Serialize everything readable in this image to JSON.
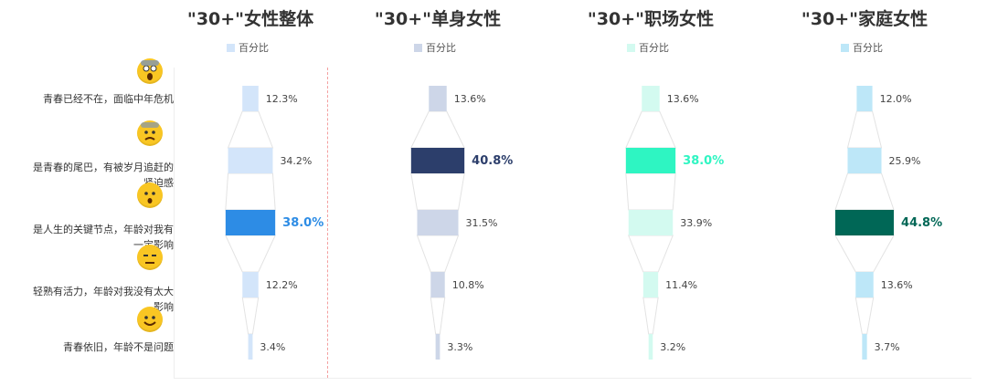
{
  "legend_label": "百分比",
  "categories": [
    {
      "label": "青春已经不在，面临中年危机",
      "icon": "screaming-face-icon"
    },
    {
      "label": "是青春的尾巴，有被岁月追赶的紧迫感",
      "icon": "anxious-face-icon"
    },
    {
      "label": "是人生的关键节点，年龄对我有一定影响",
      "icon": "surprised-face-icon"
    },
    {
      "label": "轻熟有活力，年龄对我没有太大影响",
      "icon": "expressionless-face-icon"
    },
    {
      "label": "青春依旧，年龄不是问题",
      "icon": "smiling-face-icon"
    }
  ],
  "chart_data": [
    {
      "type": "bar",
      "subtype": "funnel",
      "title": "\"30+\"女性整体",
      "series_label": "百分比",
      "categories": [
        "青春已经不在，面临中年危机",
        "是青春的尾巴，有被岁月追赶的紧迫感",
        "是人生的关键节点，年龄对我有一定影响",
        "轻熟有活力，年龄对我没有太大影响",
        "青春依旧，年龄不是问题"
      ],
      "values": [
        12.3,
        34.2,
        38.0,
        12.2,
        3.4
      ],
      "value_labels": [
        "12.3%",
        "34.2%",
        "38.0%",
        "12.2%",
        "3.4%"
      ],
      "highlight_index": 2,
      "color": "#d3e5fa",
      "highlight_color": "#2d8ce5"
    },
    {
      "type": "bar",
      "subtype": "funnel",
      "title": "\"30+\"单身女性",
      "series_label": "百分比",
      "categories": [
        "青春已经不在，面临中年危机",
        "是青春的尾巴，有被岁月追赶的紧迫感",
        "是人生的关键节点，年龄对我有一定影响",
        "轻熟有活力，年龄对我没有太大影响",
        "青春依旧，年龄不是问题"
      ],
      "values": [
        13.6,
        40.8,
        31.5,
        10.8,
        3.3
      ],
      "value_labels": [
        "13.6%",
        "40.8%",
        "31.5%",
        "10.8%",
        "3.3%"
      ],
      "highlight_index": 1,
      "color": "#cdd6e8",
      "highlight_color": "#2c3e6b"
    },
    {
      "type": "bar",
      "subtype": "funnel",
      "title": "\"30+\"职场女性",
      "series_label": "百分比",
      "categories": [
        "青春已经不在，面临中年危机",
        "是青春的尾巴，有被岁月追赶的紧迫感",
        "是人生的关键节点，年龄对我有一定影响",
        "轻熟有活力，年龄对我没有太大影响",
        "青春依旧，年龄不是问题"
      ],
      "values": [
        13.6,
        38.0,
        33.9,
        11.4,
        3.2
      ],
      "value_labels": [
        "13.6%",
        "38.0%",
        "33.9%",
        "11.4%",
        "3.2%"
      ],
      "highlight_index": 1,
      "color": "#d3faf0",
      "highlight_color": "#2ef5c2"
    },
    {
      "type": "bar",
      "subtype": "funnel",
      "title": "\"30+\"家庭女性",
      "series_label": "百分比",
      "categories": [
        "青春已经不在，面临中年危机",
        "是青春的尾巴，有被岁月追赶的紧迫感",
        "是人生的关键节点，年龄对我有一定影响",
        "轻熟有活力，年龄对我没有太大影响",
        "青春依旧，年龄不是问题"
      ],
      "values": [
        12.0,
        25.9,
        44.8,
        13.6,
        3.7
      ],
      "value_labels": [
        "12.0%",
        "25.9%",
        "44.8%",
        "13.6%",
        "3.7%"
      ],
      "highlight_index": 2,
      "color": "#bde7f8",
      "highlight_color": "#006756"
    }
  ]
}
